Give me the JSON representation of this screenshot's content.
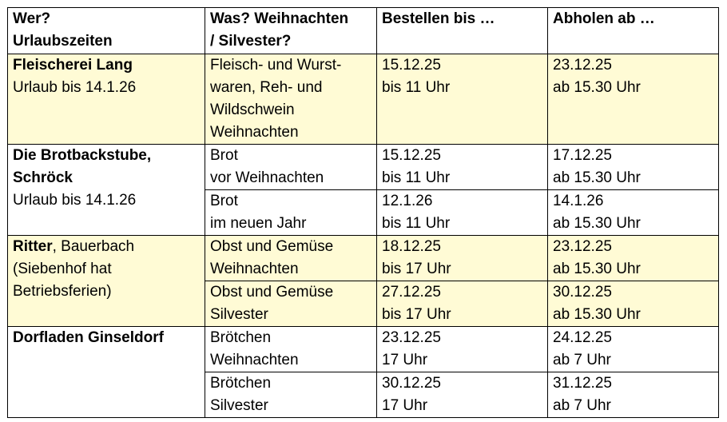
{
  "header": {
    "col1": [
      "Wer?",
      "Urlaubszeiten"
    ],
    "col2": [
      "Was? Weihnachten",
      "/ Silvester?"
    ],
    "col3": [
      "Bestellen bis …"
    ],
    "col4": [
      "Abholen ab …"
    ]
  },
  "rows": {
    "lang": {
      "name": "Fleischerei Lang",
      "holiday": "Urlaub bis 14.1.26",
      "what": [
        "Fleisch- und Wurst-",
        "waren, Reh- und",
        "Wildschwein",
        "Weihnachten"
      ],
      "order": [
        "15.12.25",
        "bis 11 Uhr"
      ],
      "pickup": [
        "23.12.25",
        "ab 15.30 Uhr"
      ]
    },
    "brot": {
      "name": [
        "Die Brotbackstube,",
        "Schröck"
      ],
      "holiday": "Urlaub bis 14.1.26",
      "items": [
        {
          "what": [
            "Brot",
            "vor Weihnachten"
          ],
          "order": [
            "15.12.25",
            "bis 11 Uhr"
          ],
          "pickup": [
            "17.12.25",
            "ab 15.30 Uhr"
          ]
        },
        {
          "what": [
            "Brot",
            "im neuen Jahr"
          ],
          "order": [
            "12.1.26",
            "bis 11 Uhr"
          ],
          "pickup": [
            "14.1.26",
            "ab 15.30 Uhr"
          ]
        }
      ]
    },
    "ritter": {
      "name_bold": "Ritter",
      "name_rest": ", Bauerbach",
      "note": [
        "(Siebenhof hat",
        "Betriebsferien)"
      ],
      "items": [
        {
          "what": [
            "Obst und Gemüse",
            "Weihnachten"
          ],
          "order": [
            "18.12.25",
            "bis 17 Uhr"
          ],
          "pickup": [
            "23.12.25",
            "ab 15.30 Uhr"
          ]
        },
        {
          "what": [
            "Obst und Gemüse",
            "Silvester"
          ],
          "order": [
            "27.12.25",
            "bis 17 Uhr"
          ],
          "pickup": [
            "30.12.25",
            "ab 15.30 Uhr"
          ]
        }
      ]
    },
    "dorfladen": {
      "name": "Dorfladen Ginseldorf",
      "items": [
        {
          "what": [
            "Brötchen",
            "Weihnachten"
          ],
          "order": [
            "23.12.25",
            "17 Uhr"
          ],
          "pickup": [
            "24.12.25",
            "ab 7 Uhr"
          ]
        },
        {
          "what": [
            "Brötchen",
            "Silvester"
          ],
          "order": [
            "30.12.25",
            "17 Uhr"
          ],
          "pickup": [
            "31.12.25",
            "ab 7 Uhr"
          ]
        }
      ]
    }
  },
  "colors": {
    "highlight": "#fffbd5",
    "border": "#000000"
  }
}
